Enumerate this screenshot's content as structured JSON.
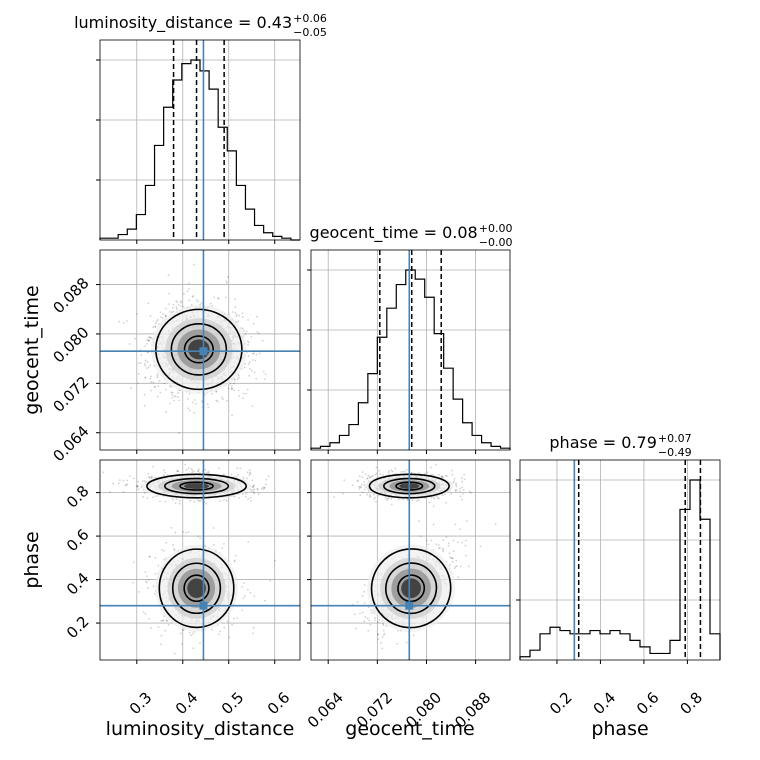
{
  "chart_data": {
    "type": "corner",
    "parameters": [
      "luminosity_distance",
      "geocent_time",
      "phase"
    ],
    "truth": {
      "luminosity_distance": 0.445,
      "geocent_time": 0.0772,
      "phase": 0.28
    },
    "truth_color": "#4682b4",
    "titles": [
      {
        "main": "luminosity_distance = 0.43",
        "sup": "+0.06",
        "sub": "−0.05"
      },
      {
        "main": "geocent_time = 0.08",
        "sup": "+0.00",
        "sub": "−0.00"
      },
      {
        "main": "phase = 0.79",
        "sup": "+0.07",
        "sub": "−0.49"
      }
    ],
    "axis_labels": {
      "x": [
        "luminosity_distance",
        "geocent_time",
        "phase"
      ],
      "y": [
        "geocent_time",
        "phase"
      ]
    },
    "ranges": {
      "luminosity_distance": [
        0.22,
        0.655
      ],
      "geocent_time": [
        0.0612,
        0.0936
      ],
      "phase": [
        0.03,
        0.95
      ]
    },
    "ticks": {
      "luminosity_distance": [
        "0.3",
        "0.4",
        "0.5",
        "0.6"
      ],
      "geocent_time": [
        "0.064",
        "0.072",
        "0.080",
        "0.088"
      ],
      "phase": [
        "0.2",
        "0.4",
        "0.6",
        "0.8"
      ]
    },
    "histograms": [
      {
        "param": "luminosity_distance",
        "range": [
          0.22,
          0.655
        ],
        "counts": [
          1,
          1,
          3,
          6,
          14,
          30,
          52,
          73,
          88,
          97,
          99,
          93,
          83,
          62,
          49,
          30,
          17,
          8,
          4,
          2,
          1,
          0
        ],
        "quantiles": [
          0.38,
          0.43,
          0.49
        ]
      },
      {
        "param": "geocent_time",
        "range": [
          0.0612,
          0.0936
        ],
        "counts": [
          1,
          2,
          4,
          8,
          14,
          26,
          42,
          62,
          78,
          91,
          99,
          94,
          84,
          64,
          45,
          28,
          15,
          8,
          4,
          2,
          1
        ],
        "quantiles": [
          0.0724,
          0.0776,
          0.0824
        ]
      },
      {
        "param": "phase",
        "range": [
          0.03,
          0.95
        ],
        "counts": [
          1,
          3,
          8,
          10,
          9,
          8,
          8,
          9,
          8,
          9,
          8,
          6,
          4,
          2,
          2,
          6,
          46,
          55,
          43,
          8
        ],
        "quantiles": [
          0.3,
          0.79,
          0.86
        ]
      }
    ],
    "grid": true
  }
}
